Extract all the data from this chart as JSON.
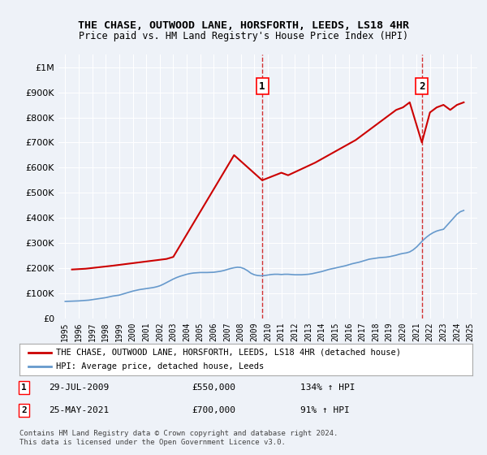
{
  "title": "THE CHASE, OUTWOOD LANE, HORSFORTH, LEEDS, LS18 4HR",
  "subtitle": "Price paid vs. HM Land Registry's House Price Index (HPI)",
  "background_color": "#eef2f8",
  "plot_bg_color": "#eef2f8",
  "ylim": [
    0,
    1050000
  ],
  "yticks": [
    0,
    100000,
    200000,
    300000,
    400000,
    500000,
    600000,
    700000,
    800000,
    900000,
    1000000
  ],
  "ytick_labels": [
    "£0",
    "£100K",
    "£200K",
    "£300K",
    "£400K",
    "£500K",
    "£600K",
    "£700K",
    "£800K",
    "£900K",
    "£1M"
  ],
  "xlabel_years": [
    "1995",
    "1996",
    "1997",
    "1998",
    "1999",
    "2000",
    "2001",
    "2002",
    "2003",
    "2004",
    "2005",
    "2006",
    "2007",
    "2008",
    "2009",
    "2010",
    "2011",
    "2012",
    "2013",
    "2014",
    "2015",
    "2016",
    "2017",
    "2018",
    "2019",
    "2020",
    "2021",
    "2022",
    "2023",
    "2024",
    "2025"
  ],
  "hpi_color": "#6699cc",
  "price_color": "#cc0000",
  "sale1_year": 2009.58,
  "sale1_price": 550000,
  "sale2_year": 2021.4,
  "sale2_price": 700000,
  "legend_label_price": "THE CHASE, OUTWOOD LANE, HORSFORTH, LEEDS, LS18 4HR (detached house)",
  "legend_label_hpi": "HPI: Average price, detached house, Leeds",
  "annotation1_label": "1",
  "annotation2_label": "2",
  "table_row1": "1     29-JUL-2009          £550,000          134% ↑ HPI",
  "table_row2": "2     25-MAY-2021          £700,000            91% ↑ HPI",
  "footer": "Contains HM Land Registry data © Crown copyright and database right 2024.\nThis data is licensed under the Open Government Licence v3.0.",
  "hpi_data_x": [
    1995.0,
    1995.25,
    1995.5,
    1995.75,
    1996.0,
    1996.25,
    1996.5,
    1996.75,
    1997.0,
    1997.25,
    1997.5,
    1997.75,
    1998.0,
    1998.25,
    1998.5,
    1998.75,
    1999.0,
    1999.25,
    1999.5,
    1999.75,
    2000.0,
    2000.25,
    2000.5,
    2000.75,
    2001.0,
    2001.25,
    2001.5,
    2001.75,
    2002.0,
    2002.25,
    2002.5,
    2002.75,
    2003.0,
    2003.25,
    2003.5,
    2003.75,
    2004.0,
    2004.25,
    2004.5,
    2004.75,
    2005.0,
    2005.25,
    2005.5,
    2005.75,
    2006.0,
    2006.25,
    2006.5,
    2006.75,
    2007.0,
    2007.25,
    2007.5,
    2007.75,
    2008.0,
    2008.25,
    2008.5,
    2008.75,
    2009.0,
    2009.25,
    2009.5,
    2009.75,
    2010.0,
    2010.25,
    2010.5,
    2010.75,
    2011.0,
    2011.25,
    2011.5,
    2011.75,
    2012.0,
    2012.25,
    2012.5,
    2012.75,
    2013.0,
    2013.25,
    2013.5,
    2013.75,
    2014.0,
    2014.25,
    2014.5,
    2014.75,
    2015.0,
    2015.25,
    2015.5,
    2015.75,
    2016.0,
    2016.25,
    2016.5,
    2016.75,
    2017.0,
    2017.25,
    2017.5,
    2017.75,
    2018.0,
    2018.25,
    2018.5,
    2018.75,
    2019.0,
    2019.25,
    2019.5,
    2019.75,
    2020.0,
    2020.25,
    2020.5,
    2020.75,
    2021.0,
    2021.25,
    2021.5,
    2021.75,
    2022.0,
    2022.25,
    2022.5,
    2022.75,
    2023.0,
    2023.25,
    2023.5,
    2023.75,
    2024.0,
    2024.25,
    2024.5
  ],
  "hpi_data_y": [
    68000,
    68500,
    69000,
    69500,
    70000,
    71000,
    72000,
    73000,
    75000,
    77000,
    79000,
    81000,
    83000,
    86000,
    89000,
    91000,
    93000,
    97000,
    101000,
    105000,
    109000,
    112000,
    115000,
    117000,
    119000,
    121000,
    123000,
    126000,
    130000,
    136000,
    143000,
    150000,
    157000,
    163000,
    168000,
    172000,
    176000,
    179000,
    181000,
    182000,
    183000,
    183000,
    183000,
    183500,
    184000,
    186000,
    188000,
    191000,
    195000,
    199000,
    202000,
    204000,
    203000,
    198000,
    190000,
    180000,
    174000,
    171000,
    170000,
    171000,
    173000,
    175000,
    176000,
    176000,
    175000,
    176000,
    176000,
    175000,
    174000,
    174000,
    174000,
    175000,
    176000,
    178000,
    181000,
    184000,
    187000,
    191000,
    195000,
    198000,
    201000,
    204000,
    207000,
    210000,
    214000,
    218000,
    221000,
    224000,
    228000,
    232000,
    236000,
    238000,
    240000,
    242000,
    243000,
    244000,
    246000,
    249000,
    252000,
    256000,
    259000,
    261000,
    265000,
    273000,
    284000,
    298000,
    312000,
    324000,
    334000,
    342000,
    348000,
    352000,
    355000,
    370000,
    385000,
    400000,
    415000,
    425000,
    430000
  ],
  "price_data_x": [
    1995.5,
    1996.5,
    1998.5,
    2002.5,
    2003.0,
    2007.5,
    2009.58,
    2011.0,
    2011.5,
    2013.5,
    2014.0,
    2014.5,
    2015.5,
    2016.5,
    2017.0,
    2017.5,
    2018.0,
    2018.5,
    2019.0,
    2019.5,
    2020.0,
    2020.5,
    2021.4,
    2022.0,
    2022.5,
    2023.0,
    2023.5,
    2024.0,
    2024.5
  ],
  "price_data_y": [
    195000,
    198000,
    210000,
    237000,
    245000,
    650000,
    550000,
    580000,
    570000,
    620000,
    635000,
    650000,
    680000,
    710000,
    730000,
    750000,
    770000,
    790000,
    810000,
    830000,
    840000,
    860000,
    700000,
    820000,
    840000,
    850000,
    830000,
    850000,
    860000
  ]
}
